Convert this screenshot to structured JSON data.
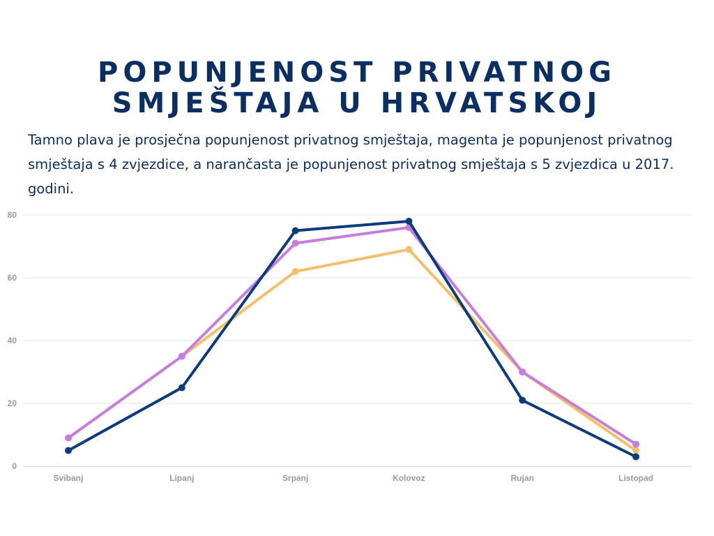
{
  "title_lines": [
    "POPUNJENOST PRIVATNOG",
    "SMJEŠTAJA U HRVATSKOJ"
  ],
  "subtitle": "Tamno plava je prosječna popunjenost privatnog smještaja, magenta je popunjenost privatnog smještaja s 4 zvjezdice, a narančasta je popunjenost privatnog smještaja s 5 zvjezdica u 2017. godini.",
  "chart_data": {
    "type": "line",
    "title": "POPUNJENOST PRIVATNOG SMJEŠTAJA U HRVATSKOJ",
    "xlabel": "",
    "ylabel": "",
    "categories": [
      "Svibanj",
      "Lipanj",
      "Srpanj",
      "Kolovoz",
      "Rujan",
      "Listopad"
    ],
    "ylim": [
      0,
      80
    ],
    "yticks": [
      0,
      20,
      40,
      60,
      80
    ],
    "grid": true,
    "legend": "none",
    "series": [
      {
        "color": "#f2bf6b",
        "values": [
          9,
          35,
          62,
          69,
          30,
          5
        ]
      },
      {
        "color": "#c77ddd",
        "values": [
          9,
          35,
          71,
          76,
          30,
          7
        ]
      },
      {
        "color": "#0c3b7c",
        "values": [
          5,
          25,
          75,
          78,
          21,
          3
        ]
      }
    ]
  }
}
